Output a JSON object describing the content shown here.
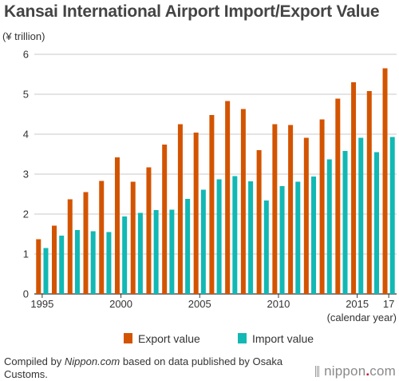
{
  "chart_data": {
    "type": "bar",
    "title": "Kansai International Airport Import/Export Value",
    "ylabel": "(¥ trillion)",
    "xlabel": "(calendar year)",
    "ylim": [
      0,
      6
    ],
    "yticks": [
      0,
      1,
      2,
      3,
      4,
      5,
      6
    ],
    "grid": "horizontal",
    "legend_position": "bottom",
    "categories": [
      "1995",
      "1996",
      "1997",
      "1998",
      "1999",
      "2000",
      "2001",
      "2002",
      "2003",
      "2004",
      "2005",
      "2006",
      "2007",
      "2008",
      "2009",
      "2010",
      "2011",
      "2012",
      "2013",
      "2014",
      "2015",
      "2016",
      "2017"
    ],
    "xtick_labels": [
      {
        "category": "1995",
        "label": "1995"
      },
      {
        "category": "2000",
        "label": "2000"
      },
      {
        "category": "2005",
        "label": "2005"
      },
      {
        "category": "2010",
        "label": "2010"
      },
      {
        "category": "2015",
        "label": "2015"
      },
      {
        "category": "2017",
        "label": "17"
      }
    ],
    "series": [
      {
        "name": "Export value",
        "color": "#d35400",
        "values": [
          1.37,
          1.71,
          2.37,
          2.55,
          2.83,
          3.42,
          2.81,
          3.17,
          3.74,
          4.25,
          4.04,
          4.48,
          4.83,
          4.63,
          3.6,
          4.25,
          4.23,
          3.91,
          4.37,
          4.89,
          5.3,
          5.08,
          5.65
        ]
      },
      {
        "name": "Import value",
        "color": "#12b8b3",
        "values": [
          1.15,
          1.46,
          1.6,
          1.57,
          1.55,
          1.94,
          2.03,
          2.1,
          2.11,
          2.38,
          2.61,
          2.87,
          2.95,
          2.82,
          2.34,
          2.7,
          2.81,
          2.94,
          3.37,
          3.58,
          3.91,
          3.55,
          3.93
        ]
      }
    ]
  },
  "footer": {
    "prefix": "Compiled by ",
    "site": "Nippon.com",
    "suffix": " based on data published by Osaka Customs."
  },
  "brand": {
    "name": "nippon",
    "dot": ".",
    "tld": "com"
  }
}
